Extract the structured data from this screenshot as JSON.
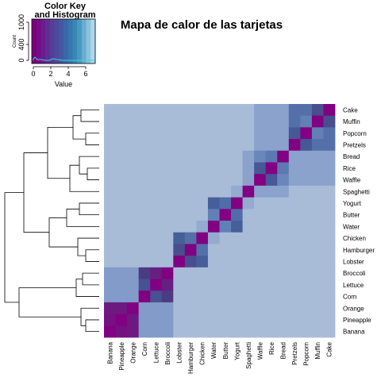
{
  "chart_data": {
    "type": "heatmap",
    "title": "Mapa de calor de las tarjetas",
    "items": [
      "Banana",
      "Pineapple",
      "Orange",
      "Corn",
      "Lettuce",
      "Broccoli",
      "Lobster",
      "Hamburger",
      "Chicken",
      "Water",
      "Butter",
      "Yogurt",
      "Spaghetti",
      "Waffle",
      "Rice",
      "Bread",
      "Pretzels",
      "Popcorn",
      "Muffin",
      "Cake"
    ],
    "row_labels_top_to_bottom": [
      "Cake",
      "Muffin",
      "Popcorn",
      "Pretzels",
      "Bread",
      "Rice",
      "Waffle",
      "Spaghetti",
      "Yogurt",
      "Butter",
      "Water",
      "Chicken",
      "Hamburger",
      "Lobster",
      "Broccoli",
      "Lettuce",
      "Corn",
      "Orange",
      "Pineapple",
      "Banana"
    ],
    "value_range": [
      0,
      7
    ],
    "blocks": [
      {
        "items": [
          "Banana",
          "Pineapple",
          "Orange"
        ],
        "value": 6
      },
      {
        "items": [
          "Corn",
          "Lettuce",
          "Broccoli"
        ],
        "value": 5
      },
      {
        "items": [
          "Lobster",
          "Hamburger",
          "Chicken"
        ],
        "value": 4
      },
      {
        "items": [
          "Water",
          "Butter",
          "Yogurt"
        ],
        "value": 4
      },
      {
        "items": [
          "Waffle",
          "Rice",
          "Bread"
        ],
        "value": 3.5
      },
      {
        "items": [
          "Pretzels",
          "Popcorn",
          "Muffin",
          "Cake"
        ],
        "value": 3.5
      }
    ],
    "color_key": {
      "title": "Color Key\nand Histogram",
      "xlabel": "Value",
      "ylabel": "Count",
      "xticks": [
        "0",
        "2",
        "4",
        "6"
      ],
      "yticks": [
        "0",
        "400",
        "1000"
      ],
      "colors": [
        "#7d007d",
        "#750c86",
        "#6a1d8c",
        "#5f2e93",
        "#553d98",
        "#4b4b9d",
        "#4259a2",
        "#3a67a8",
        "#3776ae",
        "#3a86b6",
        "#4a98c0",
        "#68acce",
        "#8bc2dd",
        "#add8ec"
      ]
    }
  }
}
